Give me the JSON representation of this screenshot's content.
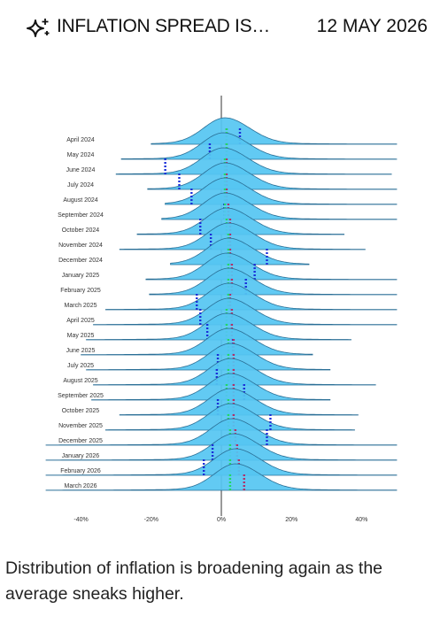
{
  "header": {
    "title": "INFLATION SPREAD IS…",
    "date": "12 MAY 2026"
  },
  "chart_data": {
    "type": "ridgeline",
    "categories": [
      "April 2024",
      "May 2024",
      "June 2024",
      "July 2024",
      "August 2024",
      "September 2024",
      "October 2024",
      "November 2024",
      "December 2024",
      "January 2025",
      "February 2025",
      "March 2025",
      "April 2025",
      "May 2025",
      "June 2025",
      "July 2025",
      "August 2025",
      "September 2025",
      "October 2025",
      "November 2025",
      "December 2025",
      "January 2026",
      "February 2026",
      "March 2026"
    ],
    "lows": [
      -20,
      -28.5,
      -30,
      -21,
      -16,
      -17,
      -24,
      -29,
      -14.5,
      -21.5,
      -20.5,
      -33,
      -36.5,
      -38.5,
      -40,
      -38.5,
      -36.5,
      -37,
      -29,
      -33,
      -50,
      -50,
      -50,
      -50
    ],
    "peaks": [
      1,
      0.5,
      0.5,
      1,
      1,
      1,
      1.5,
      2,
      2,
      1.5,
      2,
      2,
      2,
      1.5,
      2,
      2.5,
      2.5,
      2.5,
      2.5,
      2.5,
      3,
      3.5,
      4,
      4
    ],
    "highs": [
      50,
      50,
      48.5,
      50,
      50,
      50,
      35,
      41,
      25,
      50,
      50,
      50,
      50,
      37,
      26,
      31,
      44,
      31,
      39,
      38,
      50,
      50,
      50,
      50
    ],
    "color": "#55c6f2",
    "series": [
      {
        "color": "#1a2fd8",
        "values": [
          5.3,
          -3.3,
          -16,
          -12,
          -8.5,
          0.8,
          -6,
          -3,
          13,
          9.5,
          7,
          -7,
          -6,
          -4,
          3.3,
          -1,
          -1.3,
          6.5,
          -1,
          14,
          13,
          -2.5,
          -5,
          null
        ]
      },
      {
        "color": "#b0306a",
        "values": [
          1.5,
          1.5,
          1.5,
          1.5,
          1.5,
          2,
          2.5,
          2.5,
          2.5,
          3,
          3,
          2.5,
          3,
          3,
          3.5,
          3.5,
          3.5,
          3.5,
          3.5,
          3.5,
          4,
          4.5,
          5,
          6.5
        ]
      },
      {
        "color": "#22d866",
        "values": [
          1.5,
          1.5,
          1,
          1,
          1,
          1,
          1.5,
          2,
          2,
          2,
          2,
          2,
          1.5,
          1.5,
          2,
          2,
          2,
          1.5,
          2,
          2,
          2.5,
          2.5,
          2.5,
          2.5
        ]
      }
    ],
    "xlim": [
      -50,
      50
    ],
    "xticks": [
      {
        "value": -40,
        "label": "-40%"
      },
      {
        "value": -20,
        "label": "-20%"
      },
      {
        "value": 0,
        "label": "0%"
      },
      {
        "value": 20,
        "label": "20%"
      },
      {
        "value": 40,
        "label": "40%"
      }
    ]
  },
  "caption": "Distribution of inflation is broadening again as the average sneaks higher."
}
